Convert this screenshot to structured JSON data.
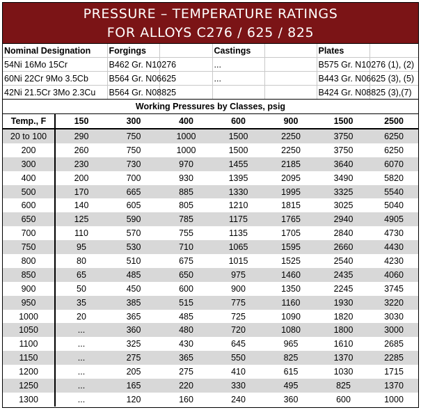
{
  "title": {
    "line1": "PRESSURE – TEMPERATURE RATINGS",
    "line2": "FOR ALLOYS C276 / 625 / 825"
  },
  "spec_table": {
    "headers": [
      "Nominal Designation",
      "Forgings",
      "",
      "Castings",
      "",
      "Plates",
      ""
    ],
    "rows": [
      [
        "54Ni 16Mo 15Cr",
        "B462 Gr. N10276",
        "",
        "...",
        "",
        "B575 Gr. N10276 (1), (2)",
        ""
      ],
      [
        "60Ni 22Cr 9Mo 3.5Cb",
        "B564 Gr. N06625",
        "",
        "...",
        "",
        "B443 Gr. N06625 (3), (5)",
        ""
      ],
      [
        "42Ni 21.5Cr 3Mo 2.3Cu",
        "B564 Gr. N08825",
        "",
        "",
        "",
        "B424 Gr. N08825 (3),(7)",
        ""
      ]
    ]
  },
  "working_pressures_title": "Working Pressures by Classes, psig",
  "ratings": {
    "headers": [
      "Temp., F",
      "150",
      "300",
      "400",
      "600",
      "900",
      "1500",
      "2500"
    ],
    "rows": [
      [
        "20 to 100",
        "290",
        "750",
        "1000",
        "1500",
        "2250",
        "3750",
        "6250"
      ],
      [
        "200",
        "260",
        "750",
        "1000",
        "1500",
        "2250",
        "3750",
        "6250"
      ],
      [
        "300",
        "230",
        "730",
        "970",
        "1455",
        "2185",
        "3640",
        "6070"
      ],
      [
        "400",
        "200",
        "700",
        "930",
        "1395",
        "2095",
        "3490",
        "5820"
      ],
      [
        "500",
        "170",
        "665",
        "885",
        "1330",
        "1995",
        "3325",
        "5540"
      ],
      [
        "600",
        "140",
        "605",
        "805",
        "1210",
        "1815",
        "3025",
        "5040"
      ],
      [
        "650",
        "125",
        "590",
        "785",
        "1175",
        "1765",
        "2940",
        "4905"
      ],
      [
        "700",
        "110",
        "570",
        "755",
        "1135",
        "1705",
        "2840",
        "4730"
      ],
      [
        "750",
        "95",
        "530",
        "710",
        "1065",
        "1595",
        "2660",
        "4430"
      ],
      [
        "800",
        "80",
        "510",
        "675",
        "1015",
        "1525",
        "2540",
        "4230"
      ],
      [
        "850",
        "65",
        "485",
        "650",
        "975",
        "1460",
        "2435",
        "4060"
      ],
      [
        "900",
        "50",
        "450",
        "600",
        "900",
        "1350",
        "2245",
        "3745"
      ],
      [
        "950",
        "35",
        "385",
        "515",
        "775",
        "1160",
        "1930",
        "3220"
      ],
      [
        "1000",
        "20",
        "365",
        "485",
        "725",
        "1090",
        "1820",
        "3030"
      ],
      [
        "1050",
        "...",
        "360",
        "480",
        "720",
        "1080",
        "1800",
        "3000"
      ],
      [
        "1100",
        "...",
        "325",
        "430",
        "645",
        "965",
        "1610",
        "2685"
      ],
      [
        "1150",
        "...",
        "275",
        "365",
        "550",
        "825",
        "1370",
        "2285"
      ],
      [
        "1200",
        "...",
        "205",
        "275",
        "410",
        "615",
        "1030",
        "1715"
      ],
      [
        "1250",
        "...",
        "165",
        "220",
        "330",
        "495",
        "825",
        "1370"
      ],
      [
        "1300",
        "...",
        "120",
        "160",
        "240",
        "360",
        "600",
        "1000"
      ]
    ]
  },
  "colors": {
    "title_bg": "#7b1416",
    "title_text": "#ffffff",
    "shade_row": "#d8d8d8"
  }
}
